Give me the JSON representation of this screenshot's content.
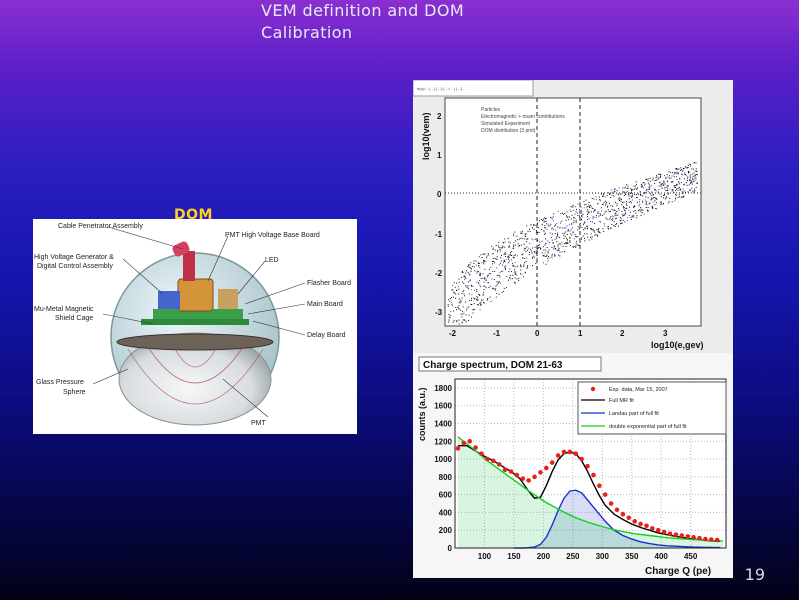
{
  "slide": {
    "title": "VEM definition and DOM\nCalibration",
    "number": "19",
    "dom_label": "DOM"
  },
  "dom_diagram": {
    "labels": {
      "cable": "Cable Penetrator Assembly",
      "hv_gen": "High Voltage Generator &",
      "hv_gen2": "Digital Control Assembly",
      "pmt_base": "PMT High Voltage Base Board",
      "led": "LED",
      "flasher": "Flasher Board",
      "main": "Main Board",
      "mu_metal": "Mu-Metal Magnetic",
      "mu_metal2": "Shield Cage",
      "delay": "Delay Board",
      "glass": "Glass Pressure",
      "glass2": "Sphere",
      "pmt": "PMT"
    }
  },
  "scatter": {
    "tab": "ep|p:...(...) {...}:(...=...) {...}...",
    "legend": [
      "Particles",
      "Electromagnetic + muon contributions",
      "Simulated Experiment",
      "DOM distribution (3 pmt)"
    ],
    "xlabel": "log10(e,gev)",
    "ylabel": "log10(vem)",
    "xticks": [
      "-2",
      "-1",
      "0",
      "1",
      "2",
      "3"
    ],
    "yticks": [
      "2",
      "1",
      "0",
      "-1",
      "-2",
      "-3"
    ]
  },
  "chart_data": {
    "type": "line",
    "title": "Charge spectrum, DOM 21-63",
    "xlabel": "Charge Q (pe)",
    "ylabel": "counts (a.u.)",
    "xlim": [
      50,
      510
    ],
    "ylim": [
      0,
      1900
    ],
    "xticks": [
      100,
      150,
      200,
      250,
      300,
      350,
      400,
      450
    ],
    "yticks": [
      0,
      200,
      400,
      600,
      800,
      1000,
      1200,
      1400,
      1600,
      1800
    ],
    "legend": [
      "Exp. data, Mar 15, 2007",
      "Full MR fit",
      "Landau part of full fit",
      "double exponential part of full fit"
    ],
    "series": [
      {
        "name": "Exp. data, Mar 15, 2007",
        "color": "#e8201a",
        "x": [
          55,
          65,
          75,
          85,
          95,
          105,
          115,
          125,
          135,
          145,
          155,
          165,
          175,
          185,
          195,
          205,
          215,
          225,
          235,
          245,
          255,
          265,
          275,
          285,
          295,
          305,
          315,
          325,
          335,
          345,
          355,
          365,
          375,
          385,
          395,
          405,
          415,
          425,
          435,
          445,
          455,
          465,
          475,
          485,
          495
        ],
        "y": [
          1120,
          1180,
          1200,
          1130,
          1060,
          1000,
          980,
          940,
          880,
          860,
          820,
          780,
          760,
          800,
          850,
          900,
          960,
          1040,
          1080,
          1080,
          1060,
          1000,
          920,
          820,
          700,
          600,
          500,
          430,
          380,
          340,
          300,
          270,
          250,
          220,
          200,
          180,
          160,
          150,
          140,
          130,
          120,
          110,
          100,
          95,
          90
        ]
      },
      {
        "name": "Full MR fit",
        "color": "#000000",
        "x": [
          55,
          70,
          85,
          100,
          115,
          130,
          145,
          160,
          175,
          185,
          195,
          205,
          215,
          225,
          235,
          245,
          255,
          265,
          275,
          285,
          295,
          305,
          320,
          335,
          350,
          365,
          380,
          395,
          410,
          425,
          440,
          455,
          470,
          485,
          500
        ],
        "y": [
          1150,
          1150,
          1090,
          1030,
          980,
          920,
          860,
          780,
          640,
          560,
          570,
          700,
          860,
          990,
          1060,
          1080,
          1060,
          980,
          860,
          720,
          590,
          480,
          380,
          320,
          270,
          230,
          200,
          170,
          150,
          130,
          115,
          100,
          90,
          80,
          75
        ]
      },
      {
        "name": "Landau part of full fit",
        "color": "#1a2fd0",
        "x": [
          150,
          170,
          185,
          195,
          205,
          215,
          225,
          235,
          245,
          255,
          265,
          275,
          285,
          295,
          305,
          320,
          335,
          350,
          365,
          380,
          395,
          410,
          425,
          440,
          455,
          470,
          485,
          500
        ],
        "y": [
          0,
          0,
          10,
          40,
          120,
          260,
          420,
          560,
          640,
          650,
          620,
          540,
          460,
          380,
          300,
          200,
          140,
          100,
          70,
          50,
          35,
          25,
          20,
          15,
          10,
          8,
          6,
          5
        ]
      },
      {
        "name": "double exponential part of full fit",
        "color": "#10d020",
        "x": [
          55,
          80,
          105,
          130,
          155,
          180,
          205,
          230,
          255,
          280,
          305,
          330,
          355,
          380,
          405,
          430,
          455,
          480,
          505
        ],
        "y": [
          1250,
          1120,
          980,
          860,
          740,
          620,
          510,
          420,
          340,
          280,
          230,
          190,
          160,
          140,
          120,
          105,
          95,
          85,
          80
        ]
      }
    ]
  }
}
